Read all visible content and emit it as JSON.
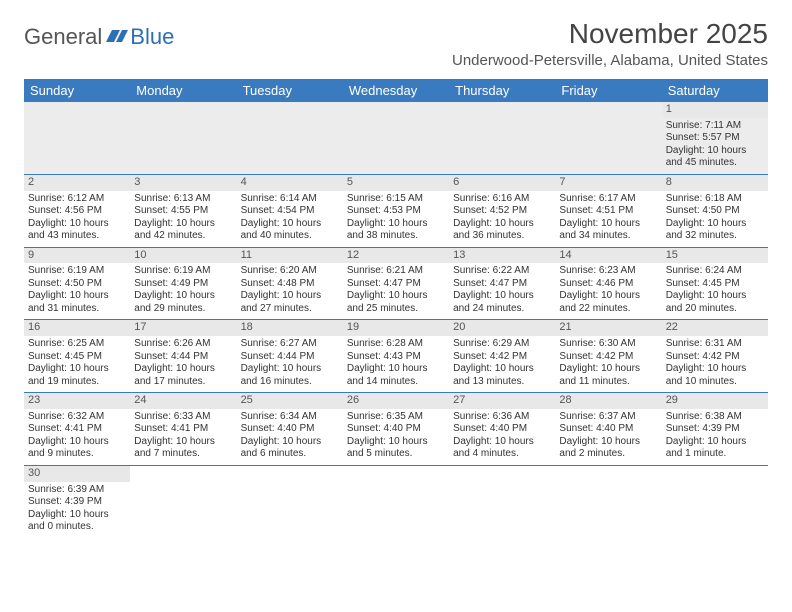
{
  "brand": {
    "part1": "General",
    "part2": "Blue"
  },
  "title": "November 2025",
  "location": "Underwood-Petersville, Alabama, United States",
  "colors": {
    "header_bg": "#3a7bbf",
    "header_fg": "#ffffff",
    "row_border": "#3a7bbf",
    "daynum_bg": "#e8e8e8",
    "firstrow_bg": "#ececec",
    "text": "#333333",
    "title_text": "#444444",
    "brand_blue": "#2d6fb5"
  },
  "typography": {
    "title_fontsize": 28,
    "location_fontsize": 15,
    "dayheader_fontsize": 13,
    "cell_fontsize": 10
  },
  "day_headers": [
    "Sunday",
    "Monday",
    "Tuesday",
    "Wednesday",
    "Thursday",
    "Friday",
    "Saturday"
  ],
  "weeks": [
    [
      null,
      null,
      null,
      null,
      null,
      null,
      {
        "n": "1",
        "sr": "Sunrise: 7:11 AM",
        "ss": "Sunset: 5:57 PM",
        "d1": "Daylight: 10 hours",
        "d2": "and 45 minutes."
      }
    ],
    [
      {
        "n": "2",
        "sr": "Sunrise: 6:12 AM",
        "ss": "Sunset: 4:56 PM",
        "d1": "Daylight: 10 hours",
        "d2": "and 43 minutes."
      },
      {
        "n": "3",
        "sr": "Sunrise: 6:13 AM",
        "ss": "Sunset: 4:55 PM",
        "d1": "Daylight: 10 hours",
        "d2": "and 42 minutes."
      },
      {
        "n": "4",
        "sr": "Sunrise: 6:14 AM",
        "ss": "Sunset: 4:54 PM",
        "d1": "Daylight: 10 hours",
        "d2": "and 40 minutes."
      },
      {
        "n": "5",
        "sr": "Sunrise: 6:15 AM",
        "ss": "Sunset: 4:53 PM",
        "d1": "Daylight: 10 hours",
        "d2": "and 38 minutes."
      },
      {
        "n": "6",
        "sr": "Sunrise: 6:16 AM",
        "ss": "Sunset: 4:52 PM",
        "d1": "Daylight: 10 hours",
        "d2": "and 36 minutes."
      },
      {
        "n": "7",
        "sr": "Sunrise: 6:17 AM",
        "ss": "Sunset: 4:51 PM",
        "d1": "Daylight: 10 hours",
        "d2": "and 34 minutes."
      },
      {
        "n": "8",
        "sr": "Sunrise: 6:18 AM",
        "ss": "Sunset: 4:50 PM",
        "d1": "Daylight: 10 hours",
        "d2": "and 32 minutes."
      }
    ],
    [
      {
        "n": "9",
        "sr": "Sunrise: 6:19 AM",
        "ss": "Sunset: 4:50 PM",
        "d1": "Daylight: 10 hours",
        "d2": "and 31 minutes."
      },
      {
        "n": "10",
        "sr": "Sunrise: 6:19 AM",
        "ss": "Sunset: 4:49 PM",
        "d1": "Daylight: 10 hours",
        "d2": "and 29 minutes."
      },
      {
        "n": "11",
        "sr": "Sunrise: 6:20 AM",
        "ss": "Sunset: 4:48 PM",
        "d1": "Daylight: 10 hours",
        "d2": "and 27 minutes."
      },
      {
        "n": "12",
        "sr": "Sunrise: 6:21 AM",
        "ss": "Sunset: 4:47 PM",
        "d1": "Daylight: 10 hours",
        "d2": "and 25 minutes."
      },
      {
        "n": "13",
        "sr": "Sunrise: 6:22 AM",
        "ss": "Sunset: 4:47 PM",
        "d1": "Daylight: 10 hours",
        "d2": "and 24 minutes."
      },
      {
        "n": "14",
        "sr": "Sunrise: 6:23 AM",
        "ss": "Sunset: 4:46 PM",
        "d1": "Daylight: 10 hours",
        "d2": "and 22 minutes."
      },
      {
        "n": "15",
        "sr": "Sunrise: 6:24 AM",
        "ss": "Sunset: 4:45 PM",
        "d1": "Daylight: 10 hours",
        "d2": "and 20 minutes."
      }
    ],
    [
      {
        "n": "16",
        "sr": "Sunrise: 6:25 AM",
        "ss": "Sunset: 4:45 PM",
        "d1": "Daylight: 10 hours",
        "d2": "and 19 minutes."
      },
      {
        "n": "17",
        "sr": "Sunrise: 6:26 AM",
        "ss": "Sunset: 4:44 PM",
        "d1": "Daylight: 10 hours",
        "d2": "and 17 minutes."
      },
      {
        "n": "18",
        "sr": "Sunrise: 6:27 AM",
        "ss": "Sunset: 4:44 PM",
        "d1": "Daylight: 10 hours",
        "d2": "and 16 minutes."
      },
      {
        "n": "19",
        "sr": "Sunrise: 6:28 AM",
        "ss": "Sunset: 4:43 PM",
        "d1": "Daylight: 10 hours",
        "d2": "and 14 minutes."
      },
      {
        "n": "20",
        "sr": "Sunrise: 6:29 AM",
        "ss": "Sunset: 4:42 PM",
        "d1": "Daylight: 10 hours",
        "d2": "and 13 minutes."
      },
      {
        "n": "21",
        "sr": "Sunrise: 6:30 AM",
        "ss": "Sunset: 4:42 PM",
        "d1": "Daylight: 10 hours",
        "d2": "and 11 minutes."
      },
      {
        "n": "22",
        "sr": "Sunrise: 6:31 AM",
        "ss": "Sunset: 4:42 PM",
        "d1": "Daylight: 10 hours",
        "d2": "and 10 minutes."
      }
    ],
    [
      {
        "n": "23",
        "sr": "Sunrise: 6:32 AM",
        "ss": "Sunset: 4:41 PM",
        "d1": "Daylight: 10 hours",
        "d2": "and 9 minutes."
      },
      {
        "n": "24",
        "sr": "Sunrise: 6:33 AM",
        "ss": "Sunset: 4:41 PM",
        "d1": "Daylight: 10 hours",
        "d2": "and 7 minutes."
      },
      {
        "n": "25",
        "sr": "Sunrise: 6:34 AM",
        "ss": "Sunset: 4:40 PM",
        "d1": "Daylight: 10 hours",
        "d2": "and 6 minutes."
      },
      {
        "n": "26",
        "sr": "Sunrise: 6:35 AM",
        "ss": "Sunset: 4:40 PM",
        "d1": "Daylight: 10 hours",
        "d2": "and 5 minutes."
      },
      {
        "n": "27",
        "sr": "Sunrise: 6:36 AM",
        "ss": "Sunset: 4:40 PM",
        "d1": "Daylight: 10 hours",
        "d2": "and 4 minutes."
      },
      {
        "n": "28",
        "sr": "Sunrise: 6:37 AM",
        "ss": "Sunset: 4:40 PM",
        "d1": "Daylight: 10 hours",
        "d2": "and 2 minutes."
      },
      {
        "n": "29",
        "sr": "Sunrise: 6:38 AM",
        "ss": "Sunset: 4:39 PM",
        "d1": "Daylight: 10 hours",
        "d2": "and 1 minute."
      }
    ],
    [
      {
        "n": "30",
        "sr": "Sunrise: 6:39 AM",
        "ss": "Sunset: 4:39 PM",
        "d1": "Daylight: 10 hours",
        "d2": "and 0 minutes."
      },
      null,
      null,
      null,
      null,
      null,
      null
    ]
  ]
}
